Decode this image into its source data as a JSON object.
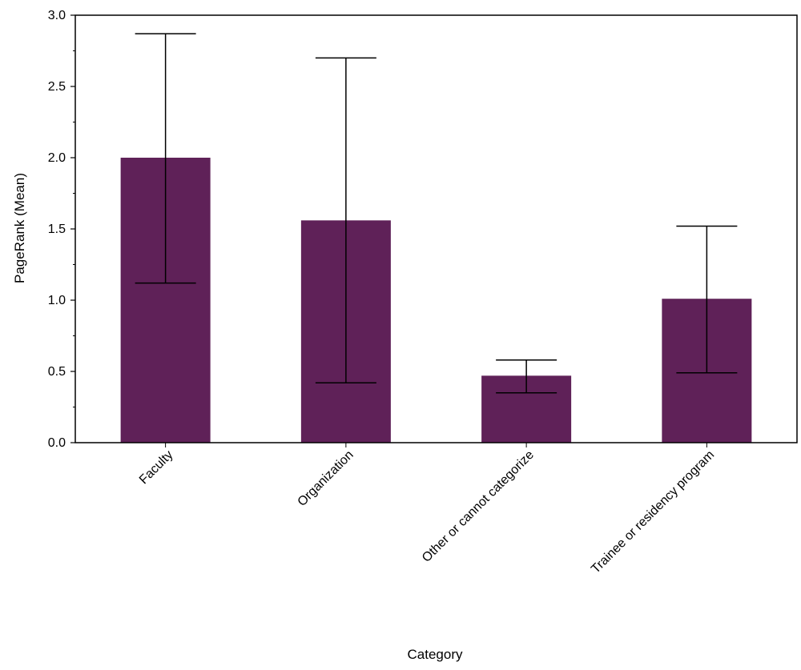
{
  "chart_data": {
    "type": "bar",
    "title": "",
    "xlabel": "Category",
    "ylabel": "PageRank (Mean)",
    "categories": [
      "Faculty",
      "Organization",
      "Other or cannot categorize",
      "Trainee or residency program"
    ],
    "values": [
      2.0,
      1.56,
      0.47,
      1.01
    ],
    "error_low": [
      1.12,
      0.42,
      0.35,
      0.49
    ],
    "error_high": [
      2.87,
      2.7,
      0.58,
      1.52
    ],
    "ylim": [
      0,
      3.0
    ],
    "yticks": [
      "0.0",
      "0.5",
      "1.0",
      "1.5",
      "2.0",
      "2.5",
      "3.0"
    ],
    "grid": false,
    "bar_color": "#5f2158"
  }
}
